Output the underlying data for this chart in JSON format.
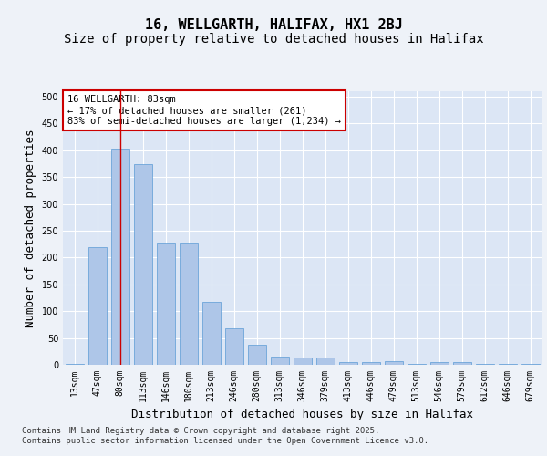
{
  "title1": "16, WELLGARTH, HALIFAX, HX1 2BJ",
  "title2": "Size of property relative to detached houses in Halifax",
  "xlabel": "Distribution of detached houses by size in Halifax",
  "ylabel": "Number of detached properties",
  "categories": [
    "13sqm",
    "47sqm",
    "80sqm",
    "113sqm",
    "146sqm",
    "180sqm",
    "213sqm",
    "246sqm",
    "280sqm",
    "313sqm",
    "346sqm",
    "379sqm",
    "413sqm",
    "446sqm",
    "479sqm",
    "513sqm",
    "546sqm",
    "579sqm",
    "612sqm",
    "646sqm",
    "679sqm"
  ],
  "values": [
    2,
    220,
    403,
    374,
    228,
    228,
    117,
    68,
    37,
    16,
    14,
    13,
    5,
    5,
    7,
    1,
    5,
    5,
    1,
    1,
    1
  ],
  "bar_color": "#aec6e8",
  "bar_edge_color": "#5b9bd5",
  "vline_x_index": 2,
  "annotation_text": "16 WELLGARTH: 83sqm\n← 17% of detached houses are smaller (261)\n83% of semi-detached houses are larger (1,234) →",
  "annotation_box_color": "#ffffff",
  "annotation_box_edge": "#cc0000",
  "background_color": "#eef2f8",
  "plot_bg_color": "#dce6f5",
  "grid_color": "#ffffff",
  "ylim": [
    0,
    510
  ],
  "yticks": [
    0,
    50,
    100,
    150,
    200,
    250,
    300,
    350,
    400,
    450,
    500
  ],
  "footer": "Contains HM Land Registry data © Crown copyright and database right 2025.\nContains public sector information licensed under the Open Government Licence v3.0.",
  "title_fontsize": 11,
  "subtitle_fontsize": 10,
  "tick_fontsize": 7,
  "label_fontsize": 9,
  "annotation_fontsize": 7.5
}
